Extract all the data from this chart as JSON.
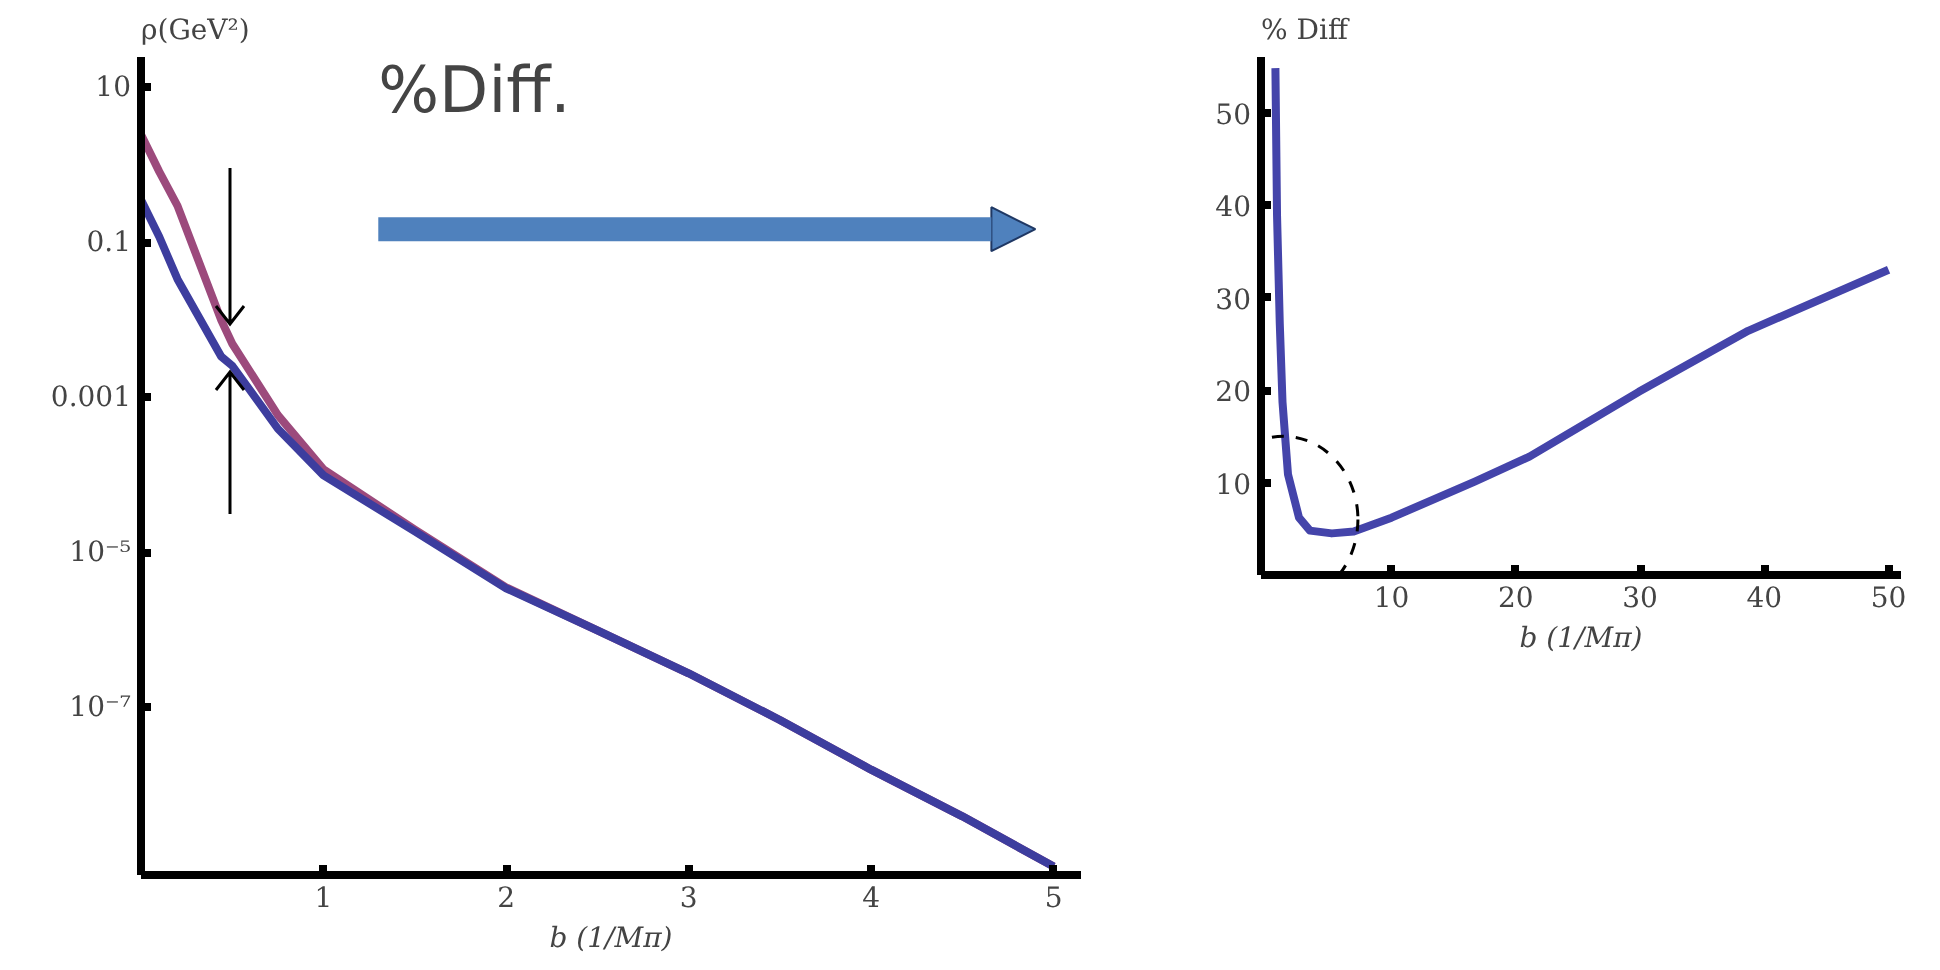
{
  "chart_data": [
    {
      "type": "line",
      "xlabel": "b (1/Mπ)",
      "ylabel": "ρ(GeV²)",
      "log": "y",
      "xlim": [
        0,
        5.15
      ],
      "ylim": [
        7e-10,
        25
      ],
      "xticks": [
        1,
        2,
        3,
        4,
        5
      ],
      "yticks": [
        10,
        0.1,
        0.001,
        {
          "value": 1e-05,
          "label": "10⁻⁵"
        },
        {
          "value": 1e-07,
          "label": "10⁻⁷"
        }
      ],
      "grid": false,
      "line_style": "solid",
      "marker": "none",
      "series": [
        {
          "color": "#9c4a7c",
          "x": [
            0,
            0.1,
            0.2,
            0.44,
            0.5,
            0.75,
            1,
            1.5,
            2,
            2.5,
            3,
            3.5,
            4,
            4.5,
            5
          ],
          "values": [
            2.5,
            0.83,
            0.3,
            0.01,
            0.005,
            0.0006,
            0.00012,
            2e-05,
            3.6e-06,
            1e-06,
            2.8e-07,
            7e-08,
            1.6e-08,
            4e-09,
            9e-10
          ]
        },
        {
          "color": "#3d3d9e",
          "x": [
            0,
            0.1,
            0.2,
            0.44,
            0.5,
            0.75,
            1,
            1.5,
            2,
            2.5,
            3,
            3.5,
            4,
            4.5,
            5
          ],
          "values": [
            0.36,
            0.12,
            0.034,
            0.0034,
            0.0026,
            0.0004,
            0.0001,
            1.9e-05,
            3.5e-06,
            1e-06,
            2.8e-07,
            7e-08,
            1.6e-08,
            4e-09,
            9e-10
          ]
        }
      ],
      "annotations": [
        "%Diff."
      ]
    },
    {
      "type": "line",
      "xlabel": "b (1/Mπ)",
      "ylabel": "% Diff",
      "xlim": [
        -0.5,
        51
      ],
      "ylim": [
        0,
        56
      ],
      "xticks": [
        10,
        20,
        30,
        40,
        50
      ],
      "yticks": [
        10,
        20,
        30,
        40,
        50
      ],
      "grid": false,
      "line_style": "solid",
      "marker": "none",
      "series": [
        {
          "color": "#4444aa",
          "x": [
            0.66,
            0.79,
            1.01,
            1.23,
            1.67,
            2.56,
            3.44,
            5.2,
            6.96,
            10,
            16.7,
            21.1,
            29.9,
            38.7,
            50
          ],
          "values": [
            54.8,
            38.9,
            27.2,
            18.7,
            10.9,
            6.2,
            4.8,
            4.5,
            4.7,
            6.2,
            10.1,
            12.8,
            19.8,
            26.4,
            33.0
          ]
        }
      ]
    }
  ]
}
